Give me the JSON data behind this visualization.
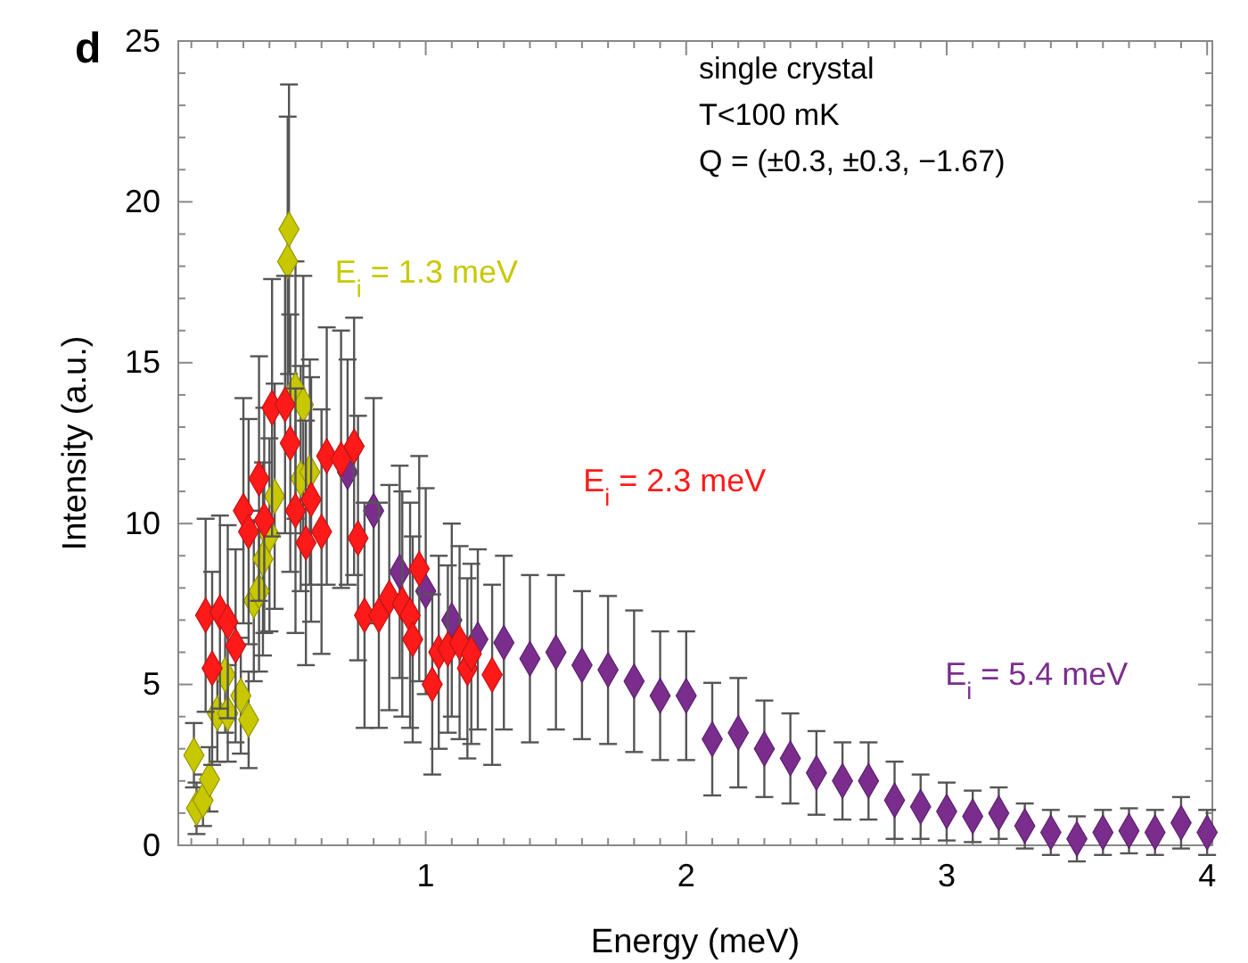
{
  "chart_data": {
    "type": "scatter",
    "xlabel": "Energy (meV)",
    "ylabel": "Intensity (a.u.)",
    "xlim": [
      0.05,
      4.02
    ],
    "ylim": [
      0,
      25
    ],
    "xticks": [
      {
        "value": 0.1,
        "label": null
      },
      {
        "value": 0.2,
        "label": null
      },
      {
        "value": 0.3,
        "label": null
      },
      {
        "value": 0.4,
        "label": null
      },
      {
        "value": 0.5,
        "label": null
      },
      {
        "value": 0.6,
        "label": null
      },
      {
        "value": 0.7,
        "label": null
      },
      {
        "value": 0.8,
        "label": null
      },
      {
        "value": 0.9,
        "label": null
      },
      1,
      {
        "value": 1.1,
        "label": null
      },
      {
        "value": 1.2,
        "label": null
      },
      {
        "value": 1.3,
        "label": null
      },
      {
        "value": 1.4,
        "label": null
      },
      {
        "value": 1.5,
        "label": null
      },
      {
        "value": 1.6,
        "label": null
      },
      {
        "value": 1.7,
        "label": null
      },
      {
        "value": 1.8,
        "label": null
      },
      {
        "value": 1.9,
        "label": null
      },
      2,
      {
        "value": 2.1,
        "label": null
      },
      {
        "value": 2.2,
        "label": null
      },
      {
        "value": 2.3,
        "label": null
      },
      {
        "value": 2.4,
        "label": null
      },
      {
        "value": 2.5,
        "label": null
      },
      {
        "value": 2.6,
        "label": null
      },
      {
        "value": 2.7,
        "label": null
      },
      {
        "value": 2.8,
        "label": null
      },
      {
        "value": 2.9,
        "label": null
      },
      3,
      {
        "value": 3.1,
        "label": null
      },
      {
        "value": 3.2,
        "label": null
      },
      {
        "value": 3.3,
        "label": null
      },
      {
        "value": 3.4,
        "label": null
      },
      {
        "value": 3.5,
        "label": null
      },
      {
        "value": 3.6,
        "label": null
      },
      {
        "value": 3.7,
        "label": null
      },
      {
        "value": 3.8,
        "label": null
      },
      {
        "value": 3.9,
        "label": null
      },
      4
    ],
    "yticks": [
      0,
      {
        "value": 1,
        "label": null
      },
      {
        "value": 2,
        "label": null
      },
      {
        "value": 3,
        "label": null
      },
      {
        "value": 4,
        "label": null
      },
      5,
      {
        "value": 6,
        "label": null
      },
      {
        "value": 7,
        "label": null
      },
      {
        "value": 8,
        "label": null
      },
      {
        "value": 9,
        "label": null
      },
      10,
      {
        "value": 11,
        "label": null
      },
      {
        "value": 12,
        "label": null
      },
      {
        "value": 13,
        "label": null
      },
      {
        "value": 14,
        "label": null
      },
      15,
      {
        "value": 16,
        "label": null
      },
      {
        "value": 17,
        "label": null
      },
      {
        "value": 18,
        "label": null
      },
      {
        "value": 19,
        "label": null
      },
      20,
      {
        "value": 21,
        "label": null
      },
      {
        "value": 22,
        "label": null
      },
      {
        "value": 23,
        "label": null
      },
      {
        "value": 24,
        "label": null
      },
      25
    ],
    "grid": false,
    "legend": false,
    "marker": "diamond",
    "annotations": [
      "d",
      "single crystal",
      "T<100 mK",
      "Q = (±0.3, ±0.3, −1.67)"
    ],
    "series": [
      {
        "name": "E$_{i}$ = 5.4 meV",
        "color": "#7b2d8e",
        "x": [
          0.7,
          0.8,
          0.9,
          1.0,
          1.1,
          1.2,
          1.3,
          1.4,
          1.5,
          1.6,
          1.7,
          1.8,
          1.9,
          2.0,
          2.1,
          2.2,
          2.3,
          2.4,
          2.5,
          2.6,
          2.7,
          2.8,
          2.9,
          3.0,
          3.1,
          3.2,
          3.3,
          3.4,
          3.5,
          3.6,
          3.7,
          3.8,
          3.9,
          4.0
        ],
        "values": [
          11.6,
          10.4,
          8.5,
          7.9,
          7.0,
          6.4,
          6.3,
          5.8,
          6.0,
          5.6,
          5.45,
          5.1,
          4.65,
          4.65,
          3.3,
          3.5,
          3.0,
          2.7,
          2.25,
          2.0,
          2.0,
          1.4,
          1.2,
          1.05,
          0.9,
          1.0,
          0.6,
          0.4,
          0.2,
          0.4,
          0.45,
          0.4,
          0.7,
          0.4
        ],
        "errors": [
          3.5,
          3.5,
          3.3,
          3.2,
          3.0,
          2.8,
          2.7,
          2.6,
          2.4,
          2.3,
          2.3,
          2.2,
          2.0,
          2.0,
          1.75,
          1.7,
          1.5,
          1.4,
          1.3,
          1.2,
          1.2,
          1.2,
          1.0,
          0.9,
          0.8,
          0.8,
          0.7,
          0.7,
          0.7,
          0.7,
          0.7,
          0.7,
          0.8,
          0.7
        ]
      },
      {
        "name": "E$_{i}$ = 2.3 meV",
        "color": "#ff1a1a",
        "x": [
          0.155,
          0.18,
          0.21,
          0.24,
          0.27,
          0.3,
          0.32,
          0.36,
          0.38,
          0.41,
          0.46,
          0.48,
          0.5,
          0.54,
          0.56,
          0.6,
          0.62,
          0.675,
          0.725,
          0.74,
          0.765,
          0.82,
          0.86,
          0.91,
          0.94,
          0.95,
          0.975,
          1.025,
          1.05,
          1.085,
          1.13,
          1.16,
          1.175,
          1.255
        ],
        "values": [
          7.15,
          5.5,
          7.25,
          6.95,
          6.2,
          10.4,
          9.75,
          11.4,
          10.1,
          13.6,
          13.7,
          12.5,
          10.4,
          9.4,
          10.75,
          9.75,
          12.1,
          12.0,
          12.4,
          9.55,
          7.15,
          7.15,
          7.7,
          7.5,
          7.15,
          6.4,
          8.6,
          5.0,
          6.0,
          6.1,
          6.3,
          5.5,
          5.95,
          5.3
        ],
        "errors": [
          3.0,
          3.0,
          3.0,
          3.0,
          3.0,
          3.5,
          3.5,
          3.8,
          3.5,
          4.0,
          4.0,
          4.0,
          3.8,
          3.8,
          3.8,
          3.8,
          4.0,
          4.0,
          4.0,
          3.8,
          3.5,
          3.5,
          3.5,
          3.5,
          3.5,
          3.2,
          3.5,
          2.8,
          3.0,
          2.6,
          3.0,
          2.8,
          2.8,
          2.8
        ]
      },
      {
        "name": "E$_{i}$ = 1.3 meV",
        "color": "#c8c800",
        "x": [
          0.11,
          0.12,
          0.145,
          0.17,
          0.2,
          0.23,
          0.24,
          0.29,
          0.32,
          0.34,
          0.36,
          0.375,
          0.4,
          0.42,
          0.47,
          0.475,
          0.5,
          0.52,
          0.53,
          0.555
        ],
        "values": [
          2.8,
          1.15,
          1.4,
          2.05,
          4.1,
          5.3,
          4.1,
          4.65,
          3.9,
          7.6,
          7.9,
          8.9,
          9.65,
          10.85,
          18.15,
          19.15,
          14.15,
          11.4,
          13.7,
          11.6
        ],
        "errors": [
          1.0,
          0.8,
          0.8,
          1.0,
          1.5,
          1.8,
          1.5,
          1.8,
          1.5,
          2.5,
          2.5,
          3.0,
          3.0,
          3.5,
          4.5,
          4.5,
          4.0,
          3.5,
          4.0,
          3.5
        ]
      }
    ]
  }
}
